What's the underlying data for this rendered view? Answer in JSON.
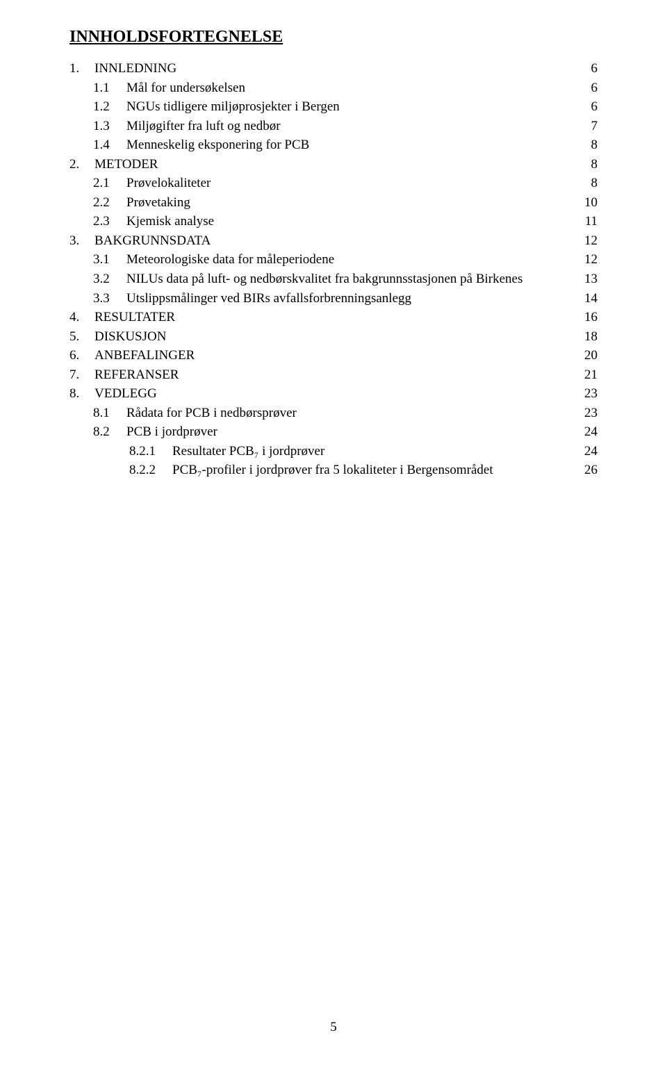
{
  "title": "INNHOLDSFORTEGNELSE",
  "page_number": "5",
  "toc": [
    {
      "level": 0,
      "num": "1.",
      "label": "INNLEDNING",
      "page": "6"
    },
    {
      "level": 1,
      "num": "1.1",
      "label": "Mål for undersøkelsen",
      "page": "6"
    },
    {
      "level": 1,
      "num": "1.2",
      "label": "NGUs tidligere miljøprosjekter i Bergen",
      "page": "6"
    },
    {
      "level": 1,
      "num": "1.3",
      "label": "Miljøgifter fra luft og nedbør",
      "page": "7"
    },
    {
      "level": 1,
      "num": "1.4",
      "label": "Menneskelig eksponering for PCB",
      "page": "8"
    },
    {
      "level": 0,
      "num": "2.",
      "label": "METODER",
      "page": "8"
    },
    {
      "level": 1,
      "num": "2.1",
      "label": "Prøvelokaliteter",
      "page": "8"
    },
    {
      "level": 1,
      "num": "2.2",
      "label": "Prøvetaking",
      "page": "10"
    },
    {
      "level": 1,
      "num": "2.3",
      "label": "Kjemisk analyse",
      "page": "11"
    },
    {
      "level": 0,
      "num": "3.",
      "label": "BAKGRUNNSDATA",
      "page": "12"
    },
    {
      "level": 1,
      "num": "3.1",
      "label": "Meteorologiske data for måleperiodene",
      "page": "12"
    },
    {
      "level": 1,
      "num": "3.2",
      "label": "NILUs data på luft- og nedbørskvalitet fra bakgrunnsstasjonen på Birkenes",
      "page": "13"
    },
    {
      "level": 1,
      "num": "3.3",
      "label": "Utslippsmålinger ved BIRs avfallsforbrenningsanlegg",
      "page": "14"
    },
    {
      "level": 0,
      "num": "4.",
      "label": "RESULTATER",
      "page": "16"
    },
    {
      "level": 0,
      "num": "5.",
      "label": "DISKUSJON",
      "page": "18"
    },
    {
      "level": 0,
      "num": "6.",
      "label": "ANBEFALINGER",
      "page": "20"
    },
    {
      "level": 0,
      "num": "7.",
      "label": "REFERANSER",
      "page": "21"
    },
    {
      "level": 0,
      "num": "8.",
      "label": "VEDLEGG",
      "page": "23"
    },
    {
      "level": 1,
      "num": "8.1",
      "label": "Rådata for PCB i nedbørsprøver",
      "page": "23"
    },
    {
      "level": 1,
      "num": "8.2",
      "label": "PCB i jordprøver",
      "page": "24"
    },
    {
      "level": 2,
      "num": "8.2.1",
      "label": "Resultater PCB₇ i jordprøver",
      "page": "24"
    },
    {
      "level": 2,
      "num": "8.2.2",
      "label": "PCB₇-profiler i jordprøver fra 5 lokaliteter i Bergensområdet",
      "page": "26"
    }
  ]
}
